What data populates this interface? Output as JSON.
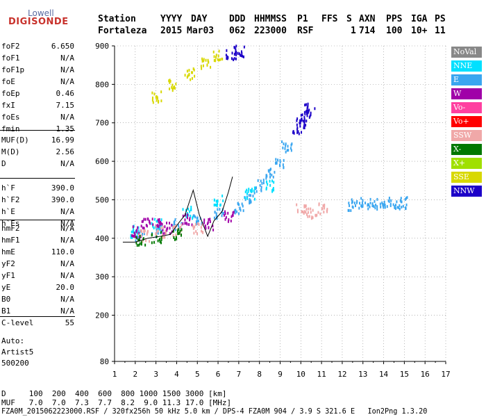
{
  "logo": {
    "top": "Lowell",
    "bottom": "DIGISONDE"
  },
  "header": {
    "labels": [
      "Station",
      "YYYY",
      "DAY",
      "DDD",
      "HHMMSS",
      "P1",
      "FFS",
      "S",
      "AXN",
      "PPS",
      "IGA",
      "PS"
    ],
    "values": [
      "Fortaleza",
      "2015",
      "Mar03",
      "062",
      "223000",
      "RSF",
      "",
      "1",
      "714",
      "100",
      "10+",
      "11"
    ]
  },
  "params_group1": [
    {
      "name": "foF2",
      "value": "6.650"
    },
    {
      "name": "foF1",
      "value": "N/A"
    },
    {
      "name": "foF1p",
      "value": "N/A"
    },
    {
      "name": "foE",
      "value": "N/A"
    },
    {
      "name": "foEp",
      "value": "0.46"
    },
    {
      "name": "fxI",
      "value": "7.15"
    },
    {
      "name": "foEs",
      "value": "N/A"
    },
    {
      "name": "fmin",
      "value": "1.35"
    }
  ],
  "params_group2": [
    {
      "name": "MUF(D)",
      "value": "16.99"
    },
    {
      "name": "M(D)",
      "value": "2.56"
    },
    {
      "name": "D",
      "value": "N/A"
    }
  ],
  "params_group3": [
    {
      "name": "h`F",
      "value": "390.0"
    },
    {
      "name": "h`F2",
      "value": "390.0"
    },
    {
      "name": "h`E",
      "value": "N/A"
    },
    {
      "name": "h`Es",
      "value": "N/A"
    }
  ],
  "params_group4": [
    {
      "name": "hmF2",
      "value": "N/A"
    },
    {
      "name": "hmF1",
      "value": "N/A"
    },
    {
      "name": "hmE",
      "value": "110.0"
    },
    {
      "name": "yF2",
      "value": "N/A"
    },
    {
      "name": "yF1",
      "value": "N/A"
    },
    {
      "name": "yE",
      "value": "20.0"
    },
    {
      "name": "B0",
      "value": "N/A"
    },
    {
      "name": "B1",
      "value": "N/A"
    }
  ],
  "clevel": {
    "name": "C-level",
    "value": "55"
  },
  "autoscale": [
    "Auto:",
    "Artist5",
    "500200"
  ],
  "legend": [
    {
      "label": "NoVal",
      "color": "#888888"
    },
    {
      "label": "NNE",
      "color": "#00e0ff"
    },
    {
      "label": "E",
      "color": "#3aa6f0"
    },
    {
      "label": "W",
      "color": "#a000a8"
    },
    {
      "label": "Vo-",
      "color": "#ff40a0"
    },
    {
      "label": "Vo+",
      "color": "#ff0000"
    },
    {
      "label": "SSW",
      "color": "#f0a8a8"
    },
    {
      "label": "X-",
      "color": "#007800"
    },
    {
      "label": "X+",
      "color": "#a0e000"
    },
    {
      "label": "SSE",
      "color": "#d8d800"
    },
    {
      "label": "NNW",
      "color": "#1c00c8"
    }
  ],
  "footer": {
    "d_row": "D     100  200  400  600  800 1000 1500 3000 [km]",
    "muf_row": "MUF   7.0  7.0  7.3  7.7  8.2  9.0 11.3 17.0 [MHz]",
    "file_line": "FZA0M_2015062223000.RSF / 320fx256h 50 kHz 5.0 km / DPS-4 FZA0M 904 / 3.9 S 321.6 E   Ion2Png 1.3.20"
  },
  "chart_data": {
    "type": "scatter",
    "title": "",
    "xlabel": "",
    "ylabel": "",
    "xlim": [
      1,
      17
    ],
    "ylim": [
      80,
      900
    ],
    "x_ticks": [
      1,
      2,
      3,
      4,
      5,
      6,
      7,
      8,
      9,
      10,
      11,
      12,
      13,
      14,
      15,
      16,
      17
    ],
    "y_ticks": [
      80,
      200,
      300,
      400,
      500,
      600,
      700,
      800,
      900
    ],
    "grid": true,
    "trace_line": {
      "x": [
        1.4,
        2.0,
        2.6,
        3.2,
        3.7,
        4.1,
        4.4,
        4.8,
        5.1,
        5.5,
        5.8,
        6.2,
        6.5,
        6.7
      ],
      "y": [
        390,
        390,
        400,
        405,
        410,
        440,
        460,
        525,
        460,
        405,
        445,
        470,
        520,
        560
      ]
    },
    "echo_regions": [
      {
        "name": "SSE",
        "x": [
          3.0,
          3.8,
          4.6,
          5.4,
          6.0
        ],
        "y": [
          770,
          800,
          830,
          855,
          880
        ]
      },
      {
        "name": "E",
        "x": [
          2.2,
          3.0,
          4.0,
          5.0,
          6.0,
          7.0,
          7.5,
          8.0,
          8.5,
          9.0,
          9.3
        ],
        "y": [
          410,
          420,
          440,
          455,
          465,
          480,
          510,
          540,
          570,
          600,
          640
        ]
      },
      {
        "name": "NNE",
        "x": [
          2.0,
          3.0,
          4.5,
          6.0,
          7.5,
          8.5
        ],
        "y": [
          420,
          440,
          470,
          500,
          520,
          540
        ]
      },
      {
        "name": "W",
        "x": [
          2.0,
          2.5,
          3.0,
          3.5,
          4.5,
          5.5,
          6.5
        ],
        "y": [
          420,
          440,
          445,
          430,
          450,
          440,
          460
        ]
      },
      {
        "name": "SSW",
        "x": [
          2.4,
          3.2,
          4.0,
          5.0,
          10.0,
          10.5,
          11.0
        ],
        "y": [
          410,
          420,
          425,
          430,
          480,
          470,
          480
        ]
      },
      {
        "name": "NNW",
        "x": [
          9.8,
          10.0,
          10.2,
          10.4,
          6.6,
          7.0
        ],
        "y": [
          690,
          705,
          720,
          740,
          880,
          890
        ]
      },
      {
        "name": "E",
        "x": [
          12.5,
          13.0,
          13.5,
          14.0,
          14.5,
          15.0
        ],
        "y": [
          490,
          495,
          490,
          495,
          490,
          495
        ]
      },
      {
        "name": "X-",
        "x": [
          2.2,
          3.0,
          4.0
        ],
        "y": [
          400,
          405,
          415
        ]
      }
    ]
  }
}
